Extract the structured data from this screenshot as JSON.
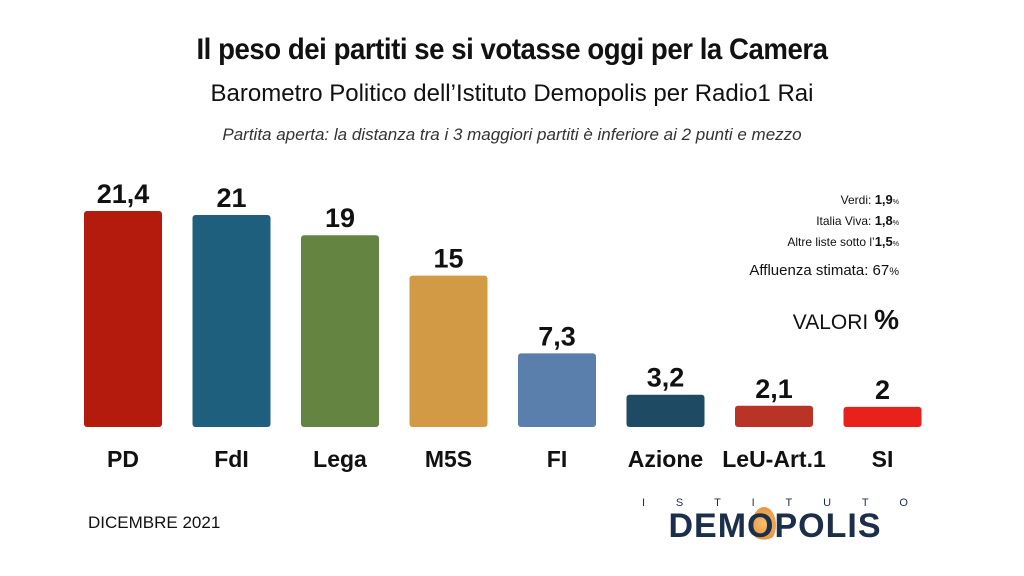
{
  "header": {
    "title": "Il peso dei partiti se si votasse oggi per la Camera",
    "subtitle": "Barometro Politico dell’Istituto Demopolis per Radio1 Rai",
    "note": "Partita aperta: la distanza tra i 3 maggiori partiti è inferiore ai 2 punti e mezzo"
  },
  "chart_data": {
    "type": "bar",
    "categories": [
      "PD",
      "FdI",
      "Lega",
      "M5S",
      "FI",
      "Azione",
      "LeU-Art.1",
      "SI"
    ],
    "values": [
      21.4,
      21,
      19,
      15,
      7.3,
      3.2,
      2.1,
      2
    ],
    "value_labels": [
      "21,4",
      "21",
      "19",
      "15",
      "7,3",
      "3,2",
      "2,1",
      "2"
    ],
    "colors": [
      "#b51b0c",
      "#1e5f7d",
      "#638541",
      "#d29a45",
      "#5b7fad",
      "#1e4a63",
      "#b93326",
      "#e8221b"
    ],
    "ylim": [
      0,
      21.4
    ],
    "grid": false
  },
  "side_notes": [
    {
      "label": "Verdi:",
      "value": "1,9",
      "unit": "%"
    },
    {
      "label": "Italia Viva:",
      "value": "1,8",
      "unit": "%"
    },
    {
      "label": "Altre liste sotto l’",
      "value": "1,5",
      "unit": "%"
    }
  ],
  "turnout": {
    "label": "Affluenza stimata:",
    "value": "67",
    "unit": "%"
  },
  "units": {
    "label": "VALORI",
    "symbol": "%"
  },
  "footer": {
    "date": "DICEMBRE 2021",
    "logo_top_letters": [
      "I",
      "S",
      "T",
      "I",
      "T",
      "U",
      "T",
      "O"
    ],
    "logo_main": "DEMOPOLIS"
  }
}
